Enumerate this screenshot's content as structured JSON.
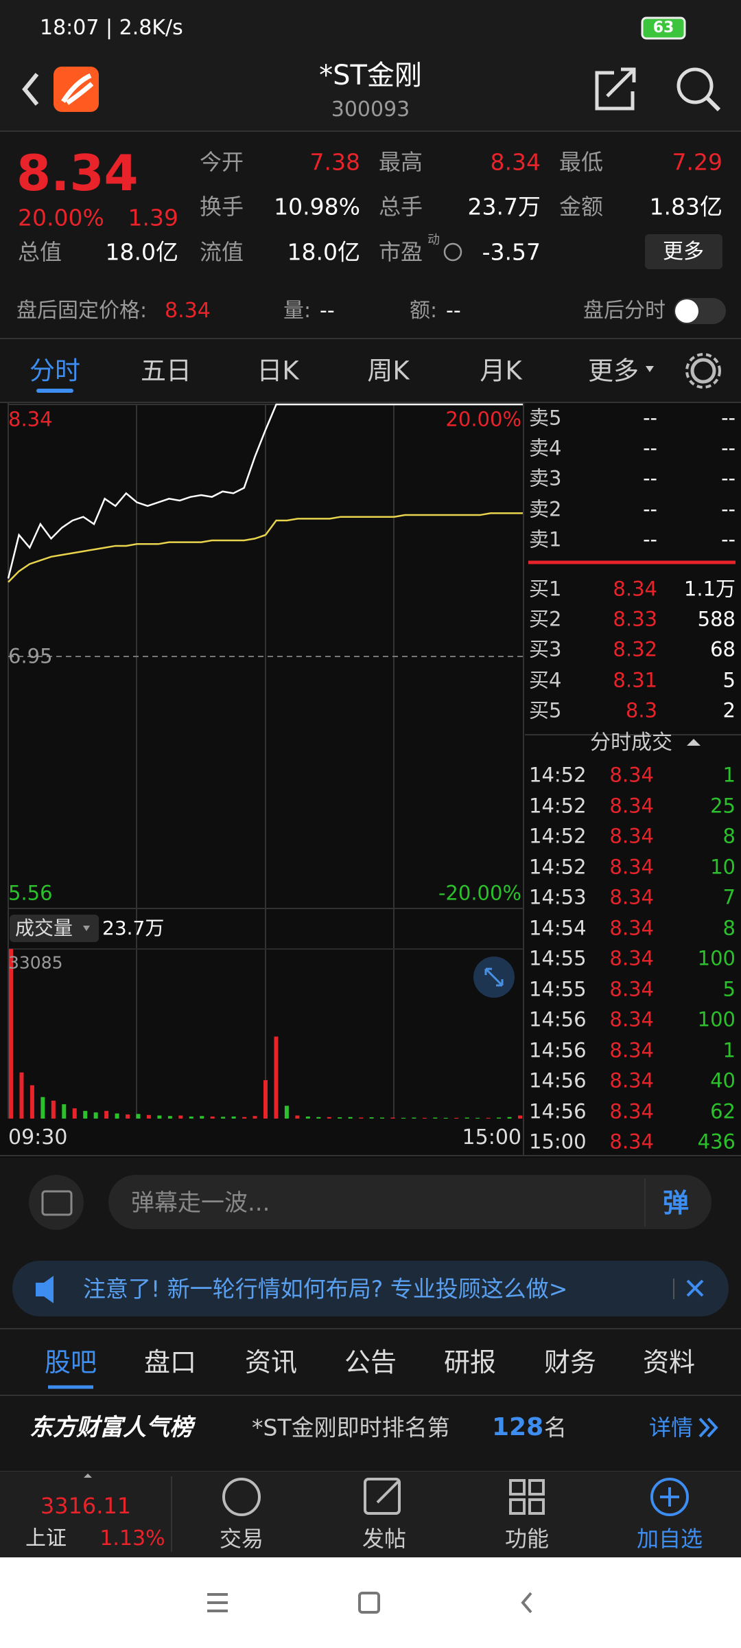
{
  "status_bar": {
    "time": "18:07 | 2.8K/s",
    "battery": 63
  },
  "header": {
    "title": "*ST金刚",
    "code": "300093"
  },
  "quote": {
    "price": 8.34,
    "change_pct": "20.00%",
    "change": 1.39,
    "stats": [
      {
        "label": "今开",
        "value": 7.38
      },
      {
        "label": "最高",
        "value": 8.34
      },
      {
        "label": "最低",
        "value": 7.29
      },
      {
        "label": "换手",
        "value": "10.98%"
      },
      {
        "label": "总手",
        "value": "23.7万"
      },
      {
        "label": "金额",
        "value": "1.83亿"
      }
    ],
    "total_value": {
      "label": "总值",
      "value": "18.0亿"
    },
    "float_value": {
      "label": "流值",
      "value": "18.0亿"
    },
    "pe": {
      "label": "市盈",
      "tag": "动",
      "value": -3.57
    },
    "more": "更多"
  },
  "after_hours": {
    "label": "盘后固定价格:",
    "price": 8.34,
    "volume_label": "量:",
    "volume": "--",
    "amount_label": "额:",
    "amount": "--",
    "timeshare": "盘后分时"
  },
  "chart_tabs": [
    "分时",
    "五日",
    "日K",
    "周K",
    "月K",
    "更多"
  ],
  "intraday": {
    "ylim": [
      5.56,
      8.34
    ],
    "yticks": [
      5.56,
      6.95,
      8.34
    ],
    "y2lim": [
      -20,
      20
    ],
    "y2ticks": [
      {
        "value": -20,
        "label": "-20.00%"
      },
      {
        "value": 20,
        "label": "20.00%"
      }
    ],
    "series": [
      {
        "color": "#ffffff",
        "values": [
          7.38,
          7.62,
          7.55,
          7.68,
          7.6,
          7.66,
          7.7,
          7.72,
          7.68,
          7.82,
          7.78,
          7.85,
          7.8,
          7.78,
          7.8,
          7.82,
          7.81,
          7.83,
          7.84,
          7.83,
          7.86,
          7.85,
          7.88,
          8.05,
          8.2,
          8.34,
          8.34,
          8.34,
          8.34,
          8.34,
          8.34,
          8.34,
          8.34,
          8.34,
          8.34,
          8.34,
          8.34,
          8.34,
          8.34,
          8.34,
          8.34,
          8.34,
          8.34,
          8.34,
          8.34,
          8.34,
          8.34,
          8.34,
          8.34
        ]
      },
      {
        "color": "#e8d44d",
        "values": [
          7.36,
          7.42,
          7.46,
          7.48,
          7.5,
          7.51,
          7.52,
          7.53,
          7.54,
          7.55,
          7.56,
          7.56,
          7.57,
          7.57,
          7.57,
          7.58,
          7.58,
          7.58,
          7.58,
          7.59,
          7.59,
          7.59,
          7.59,
          7.6,
          7.62,
          7.7,
          7.7,
          7.71,
          7.71,
          7.71,
          7.71,
          7.72,
          7.72,
          7.72,
          7.72,
          7.72,
          7.72,
          7.73,
          7.73,
          7.73,
          7.73,
          7.73,
          7.73,
          7.73,
          7.73,
          7.74,
          7.74,
          7.74,
          7.74
        ]
      }
    ],
    "time_labels": [
      "09:30",
      "15:00"
    ],
    "volume": {
      "label": "成交量",
      "total": "23.7万",
      "ylim": [
        0,
        33085
      ],
      "yticks": [
        33085
      ],
      "series": [
        {
          "color": "#e8232a",
          "values": [
            33085,
            9000,
            6500,
            null,
            3500,
            null,
            2000,
            null,
            null,
            1500,
            null,
            800,
            null,
            700,
            null,
            null,
            600,
            null,
            null,
            400,
            null,
            null,
            300,
            500,
            7500,
            16000,
            null,
            600,
            null,
            null,
            300,
            null,
            null,
            200,
            null,
            null,
            200,
            null,
            null,
            150,
            null,
            null,
            150,
            null,
            null,
            150,
            null,
            null,
            600
          ]
        },
        {
          "color": "#2cc02c",
          "values": [
            null,
            null,
            null,
            4200,
            null,
            2800,
            null,
            1500,
            1200,
            null,
            1000,
            null,
            900,
            null,
            600,
            500,
            null,
            400,
            500,
            null,
            350,
            400,
            null,
            null,
            null,
            null,
            2500,
            null,
            400,
            300,
            null,
            250,
            300,
            null,
            250,
            200,
            null,
            150,
            200,
            null,
            200,
            150,
            null,
            200,
            150,
            null,
            200,
            300,
            null
          ]
        }
      ]
    }
  },
  "order_book": {
    "asks": [
      {
        "label": "卖5",
        "price": "--",
        "volume": "--"
      },
      {
        "label": "卖4",
        "price": "--",
        "volume": "--"
      },
      {
        "label": "卖3",
        "price": "--",
        "volume": "--"
      },
      {
        "label": "卖2",
        "price": "--",
        "volume": "--"
      },
      {
        "label": "卖1",
        "price": "--",
        "volume": "--"
      }
    ],
    "bids": [
      {
        "label": "买1",
        "price": 8.34,
        "volume": "1.1万"
      },
      {
        "label": "买2",
        "price": 8.33,
        "volume": 588
      },
      {
        "label": "买3",
        "price": 8.32,
        "volume": 68
      },
      {
        "label": "买4",
        "price": 8.31,
        "volume": 5
      },
      {
        "label": "买5",
        "price": 8.3,
        "volume": 2
      }
    ]
  },
  "trades": {
    "title": "分时成交",
    "rows": [
      {
        "time": "14:52",
        "price": 8.34,
        "volume": 1
      },
      {
        "time": "14:52",
        "price": 8.34,
        "volume": 25
      },
      {
        "time": "14:52",
        "price": 8.34,
        "volume": 8
      },
      {
        "time": "14:52",
        "price": 8.34,
        "volume": 10
      },
      {
        "time": "14:53",
        "price": 8.34,
        "volume": 7
      },
      {
        "time": "14:54",
        "price": 8.34,
        "volume": 8
      },
      {
        "time": "14:55",
        "price": 8.34,
        "volume": 100
      },
      {
        "time": "14:55",
        "price": 8.34,
        "volume": 5
      },
      {
        "time": "14:56",
        "price": 8.34,
        "volume": 100
      },
      {
        "time": "14:56",
        "price": 8.34,
        "volume": 1
      },
      {
        "time": "14:56",
        "price": 8.34,
        "volume": 40
      },
      {
        "time": "14:56",
        "price": 8.34,
        "volume": 62
      },
      {
        "time": "15:00",
        "price": 8.34,
        "volume": 436
      }
    ]
  },
  "comment": {
    "placeholder": "弹幕走一波...",
    "button": "弹"
  },
  "banner": {
    "text": "注意了! 新一轮行情如何布局? 专业投顾这么做>"
  },
  "info_tabs": [
    "股吧",
    "盘口",
    "资讯",
    "公告",
    "研报",
    "财务",
    "资料"
  ],
  "ranking": {
    "brand": "东方财富人气榜",
    "text": "*ST金刚即时排名第",
    "rank": 128,
    "unit": "名",
    "link": "详情"
  },
  "bottom_nav": {
    "index_value": 3316.11,
    "index_name": "上证",
    "index_change": "1.13%",
    "items": [
      "交易",
      "发帖",
      "功能",
      "加自选"
    ]
  }
}
